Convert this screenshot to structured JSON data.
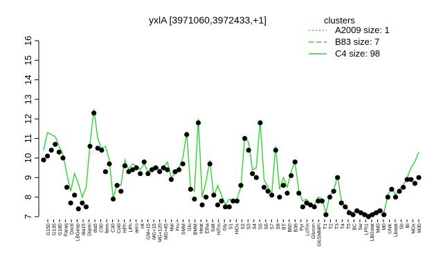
{
  "chart_data": {
    "type": "line",
    "title": "yxlA [3971060,3972433,+1]",
    "xlabel": "",
    "ylabel": "",
    "ylim": [
      7,
      16
    ],
    "y_ticks": [
      7,
      8,
      9,
      10,
      11,
      12,
      13,
      14,
      15,
      16
    ],
    "grid": false,
    "legend": {
      "title": "clusters",
      "position": "top-right",
      "entries": [
        {
          "label": "A2009 size: 1",
          "style": "dotted",
          "color": "#22c422"
        },
        {
          "label": "B83 size: 7",
          "style": "dashed",
          "color": "#22c422"
        },
        {
          "label": "C4 size: 98",
          "style": "solid",
          "color": "#22c422"
        }
      ]
    },
    "x_tick_labels": [
      "G150",
      "G135",
      "G180",
      "Paraq",
      "Oxctl",
      "LBGexp",
      "dia15",
      "Diami",
      "dia5",
      "C90",
      "ferm",
      "C30",
      "Cold",
      "HPh",
      "LPh",
      "aero",
      "nit",
      "GM+15",
      "MG+15",
      "MG+120",
      "MG+45",
      "Mal",
      "Fru",
      "SMM",
      "Glu",
      "BMM",
      "Heat",
      "Etha",
      "Salt",
      "HiTm",
      "Gly",
      "S1",
      "HiOs",
      "S2",
      "S3",
      "S4",
      "S5",
      "S6",
      "S7",
      "S8",
      "BT",
      "B60",
      "B36",
      "Pyr",
      "LoTm",
      "Glucon",
      "GlcSMMPi",
      "T1",
      "T2",
      "T3",
      "T4",
      "T5",
      "BC",
      "Sw",
      "LPh1",
      "LBGstat",
      "M40",
      "M0",
      "UNK",
      "Lbstat",
      "Sb",
      "BI",
      "MOx",
      "M30"
    ],
    "series": [
      {
        "name": "C4",
        "style": "solid",
        "x": [
          1,
          2,
          3,
          4,
          5,
          6,
          7,
          8,
          9,
          10,
          11,
          12,
          13,
          14,
          15,
          16,
          17,
          18,
          19,
          20,
          21,
          22,
          23,
          24,
          25,
          26,
          27,
          28,
          29,
          30,
          31,
          32,
          33,
          34,
          35,
          36,
          37,
          38,
          39,
          40,
          41,
          42,
          43,
          44,
          45,
          46,
          47,
          48,
          49,
          50,
          51,
          52,
          53,
          54,
          55,
          56,
          57,
          58,
          59,
          60,
          61,
          62,
          63,
          64,
          65,
          66,
          67,
          68,
          69,
          70,
          71,
          72,
          73,
          74,
          75,
          76,
          77,
          78,
          79,
          80,
          81,
          82,
          83,
          84,
          85,
          86,
          87,
          88,
          89,
          90,
          91,
          92,
          93,
          94,
          95,
          96,
          97,
          98
        ],
        "values": [
          10.4,
          11.3,
          11.2,
          11.1,
          10.6,
          10.2,
          9.2,
          8.3,
          9.2,
          8.7,
          8.0,
          8.5,
          10.7,
          12.5,
          11.0,
          10.5,
          10.6,
          9.9,
          7.9,
          8.7,
          8.6,
          9.9,
          9.4,
          9.7,
          9.6,
          9.4,
          9.7,
          9.3,
          9.5,
          9.6,
          9.4,
          9.5,
          9.8,
          9.0,
          9.2,
          9.5,
          10.0,
          11.3,
          8.5,
          8.3,
          12.0,
          8.0,
          8.8,
          9.9,
          8.0,
          8.6,
          8.1,
          7.6,
          7.9,
          7.8,
          7.9,
          8.5,
          11.1,
          10.8,
          9.4,
          9.5,
          11.9,
          8.9,
          8.5,
          8.2,
          10.6,
          8.4,
          9.0,
          8.5,
          9.3,
          9.8,
          8.3,
          7.8,
          7.9,
          7.6,
          7.6,
          8.0,
          7.9,
          7.2,
          8.1,
          8.3,
          9.1,
          7.8,
          7.5,
          7.3,
          7.2,
          7.4,
          7.3,
          7.2,
          7.1,
          7.2,
          7.3,
          7.4,
          7.2,
          8.1,
          8.5,
          8.1,
          8.4,
          8.6,
          9.0,
          9.5,
          9.8,
          10.3
        ]
      }
    ],
    "points": {
      "x": [
        1,
        2,
        3,
        4,
        5,
        6,
        7,
        8,
        9,
        10,
        11,
        12,
        13,
        14,
        15,
        16,
        17,
        18,
        19,
        20,
        21,
        22,
        23,
        24,
        25,
        26,
        27,
        28,
        29,
        30,
        31,
        32,
        33,
        34,
        35,
        36,
        37,
        38,
        39,
        40,
        41,
        42,
        43,
        44,
        45,
        46,
        47,
        48,
        49,
        50,
        51,
        52,
        53,
        54,
        55,
        56,
        57,
        58,
        59,
        60,
        61,
        62,
        63,
        64,
        65,
        66,
        67,
        68,
        69,
        70,
        71,
        72,
        73,
        74,
        75,
        76,
        77,
        78,
        79,
        80,
        81,
        82,
        83,
        84,
        85,
        86,
        87,
        88,
        89,
        90,
        91,
        92,
        93,
        94,
        95,
        96,
        97,
        98
      ],
      "y": [
        9.9,
        10.1,
        10.4,
        10.7,
        10.3,
        10.0,
        8.5,
        7.7,
        8.1,
        7.4,
        7.7,
        7.5,
        10.6,
        12.3,
        10.5,
        10.4,
        9.3,
        9.7,
        7.9,
        8.6,
        8.3,
        9.6,
        9.3,
        9.4,
        9.5,
        9.2,
        9.8,
        9.2,
        9.4,
        9.5,
        9.3,
        9.5,
        9.4,
        8.9,
        9.3,
        9.4,
        9.7,
        11.2,
        8.4,
        7.9,
        11.8,
        7.6,
        8.0,
        9.7,
        8.1,
        7.6,
        7.8,
        7.5,
        7.5,
        7.8,
        7.8,
        8.6,
        11.0,
        10.4,
        9.2,
        9.0,
        11.8,
        8.5,
        8.3,
        8.1,
        10.4,
        8.0,
        8.6,
        8.2,
        9.1,
        9.8,
        8.2,
        7.5,
        7.7,
        7.6,
        7.5,
        7.8,
        7.8,
        7.1,
        8.0,
        8.3,
        9.0,
        7.7,
        7.5,
        7.2,
        7.1,
        7.3,
        7.2,
        7.1,
        7.0,
        7.1,
        7.2,
        7.3,
        7.1,
        8.0,
        8.4,
        8.0,
        8.3,
        8.5,
        8.9,
        8.9,
        8.7,
        9.0
      ]
    }
  }
}
